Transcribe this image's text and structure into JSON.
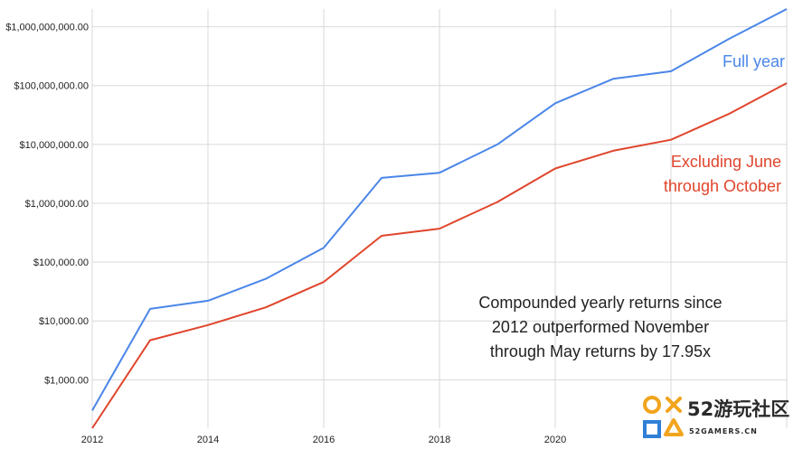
{
  "chart_data": {
    "type": "line",
    "title": "",
    "xlabel": "",
    "ylabel": "",
    "y_scale": "log",
    "ylim": [
      150,
      2000000000
    ],
    "xlim": [
      2012,
      2024
    ],
    "grid": true,
    "x_ticks": [
      2012,
      2014,
      2016,
      2018,
      2020
    ],
    "y_ticks": [
      {
        "value": 1000,
        "label": "$1,000.00"
      },
      {
        "value": 10000,
        "label": "$10,000.00"
      },
      {
        "value": 100000,
        "label": "$100,000.00"
      },
      {
        "value": 1000000,
        "label": "$1,000,000.00"
      },
      {
        "value": 10000000,
        "label": "$10,000,000.00"
      },
      {
        "value": 100000000,
        "label": "$100,000,000.00"
      },
      {
        "value": 1000000000,
        "label": "$1,000,000,000.00"
      }
    ],
    "x": [
      2012,
      2013,
      2014,
      2015,
      2016,
      2017,
      2018,
      2019,
      2020,
      2021,
      2022,
      2023,
      2024
    ],
    "series": [
      {
        "name": "Full year",
        "label_lines": [
          "Full year"
        ],
        "color": "#4a86e8",
        "values": [
          300,
          16000,
          22000,
          52000,
          175000,
          2700000,
          3300000,
          10000000,
          50000000,
          130000000,
          175000000,
          620000000,
          2000000000
        ]
      },
      {
        "name": "Excluding June through October",
        "label_lines": [
          "Excluding June",
          "through October"
        ],
        "color": "#e0452c",
        "values": [
          150,
          4700,
          8500,
          17000,
          46000,
          280000,
          370000,
          1050000,
          3900000,
          7800000,
          12000000,
          33000000,
          110000000
        ]
      }
    ],
    "annotation_lines": [
      "Compounded yearly returns since",
      "2012 outperformed November",
      "through May returns by 17.95x"
    ]
  },
  "watermark": {
    "text": "52游玩社区",
    "subtext": "52GAMERS.CN"
  }
}
